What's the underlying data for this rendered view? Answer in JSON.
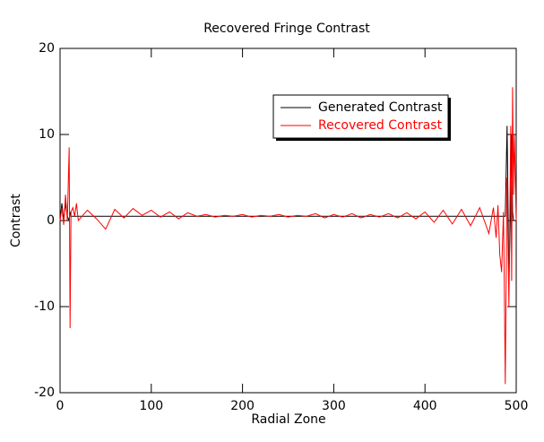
{
  "chart_data": {
    "type": "line",
    "title": "Recovered Fringe Contrast",
    "x_label": "Radial Zone",
    "y_label": "Contrast",
    "x": [
      0,
      2,
      4,
      6,
      8,
      10,
      11,
      12,
      14,
      16,
      18,
      20,
      30,
      40,
      50,
      60,
      70,
      80,
      90,
      100,
      110,
      120,
      130,
      140,
      150,
      160,
      170,
      180,
      190,
      200,
      210,
      220,
      230,
      240,
      250,
      260,
      270,
      280,
      290,
      300,
      310,
      320,
      330,
      340,
      350,
      360,
      370,
      380,
      390,
      400,
      410,
      420,
      430,
      440,
      450,
      460,
      470,
      475,
      478,
      480,
      482,
      484,
      486,
      487,
      488,
      490,
      492,
      494,
      495,
      496,
      497,
      498,
      500
    ],
    "series": [
      {
        "name": "Generated Contrast",
        "color": "#000000",
        "values": [
          0,
          2,
          0,
          2,
          0.5,
          0,
          1,
          0.5,
          0.5,
          0.5,
          0.5,
          0.5,
          0.5,
          0.5,
          0.5,
          0.5,
          0.5,
          0.5,
          0.5,
          0.5,
          0.5,
          0.5,
          0.5,
          0.5,
          0.5,
          0.5,
          0.5,
          0.5,
          0.5,
          0.5,
          0.5,
          0.5,
          0.5,
          0.5,
          0.5,
          0.5,
          0.5,
          0.5,
          0.5,
          0.5,
          0.5,
          0.5,
          0.5,
          0.5,
          0.5,
          0.5,
          0.5,
          0.5,
          0.5,
          0.5,
          0.5,
          0.5,
          0.5,
          0.5,
          0.5,
          0.5,
          0.5,
          0.5,
          0.5,
          0.5,
          0.5,
          0.5,
          0.5,
          0.5,
          0.5,
          11,
          -7,
          2,
          10,
          1,
          0,
          0,
          0
        ]
      },
      {
        "name": "Recovered Contrast",
        "color": "#ff0000",
        "values": [
          0,
          1.5,
          -0.5,
          3,
          0,
          8.5,
          -12.5,
          1,
          1.5,
          0.5,
          2,
          0,
          1.2,
          0.2,
          -1,
          1.3,
          0.3,
          1.4,
          0.6,
          1.2,
          0.4,
          1,
          0.2,
          0.9,
          0.5,
          0.7,
          0.4,
          0.6,
          0.5,
          0.7,
          0.4,
          0.6,
          0.5,
          0.7,
          0.4,
          0.6,
          0.5,
          0.8,
          0.3,
          0.7,
          0.4,
          0.8,
          0.3,
          0.7,
          0.4,
          0.8,
          0.3,
          0.9,
          0.2,
          1,
          -0.2,
          1.2,
          -0.4,
          1.3,
          -0.6,
          1.5,
          -1.5,
          1.5,
          -2,
          1.8,
          -4,
          -6,
          1,
          -8,
          -19,
          5,
          -10,
          11,
          -7,
          15.5,
          3,
          10,
          0
        ]
      }
    ],
    "xlim": [
      0,
      500
    ],
    "xticks": [
      0,
      100,
      200,
      300,
      400,
      500
    ],
    "ylim": [
      -20,
      20
    ],
    "yticks": [
      -20,
      -10,
      0,
      10,
      20
    ],
    "grid": false,
    "legend": "upper right"
  }
}
